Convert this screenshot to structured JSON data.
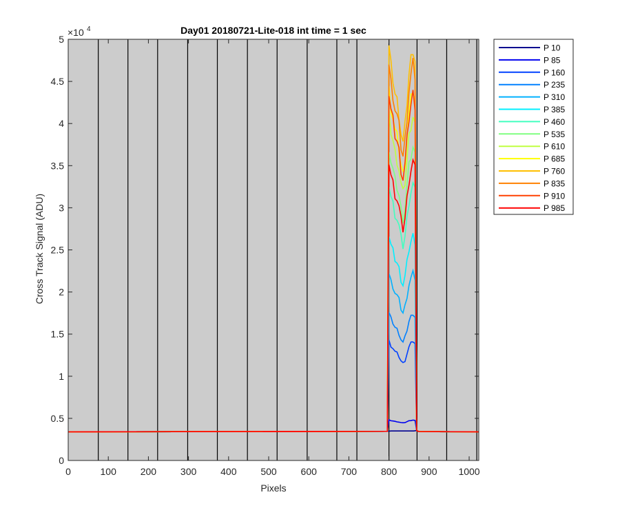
{
  "chart_data": {
    "type": "line",
    "title": "Day01 20180721-Lite-018 int time = 1 sec",
    "xlabel": "Pixels",
    "ylabel": "Cross Track Signal (ADU)",
    "xlim": [
      0,
      1024
    ],
    "ylim": [
      0,
      50000
    ],
    "x_ticks": [
      0,
      100,
      200,
      300,
      400,
      500,
      600,
      700,
      800,
      900,
      1000
    ],
    "x_tick_labels": [
      "0",
      "100",
      "200",
      "300",
      "400",
      "500",
      "600",
      "700",
      "800",
      "900",
      "1000"
    ],
    "y_ticks": [
      0,
      5000,
      10000,
      15000,
      20000,
      25000,
      30000,
      35000,
      40000,
      45000,
      50000
    ],
    "y_tick_labels": [
      "0",
      "0.5",
      "1",
      "1.5",
      "2",
      "2.5",
      "3",
      "3.5",
      "4",
      "4.5",
      "5"
    ],
    "y_exponent_label": "×10",
    "y_exponent_power": "4",
    "background_color": "#cccccc",
    "vertical_lines_x": [
      75,
      149,
      223,
      298,
      372,
      447,
      521,
      596,
      670,
      720,
      800,
      870,
      944,
      1019
    ],
    "baseline": 3400,
    "plateau_x": [
      800,
      805,
      810,
      815,
      820,
      825,
      830,
      835,
      840,
      845,
      850,
      855,
      860,
      865
    ],
    "profile_shape": [
      1.0,
      0.95,
      0.92,
      0.88,
      0.86,
      0.83,
      0.78,
      0.75,
      0.79,
      0.86,
      0.93,
      0.97,
      1.0,
      0.97
    ],
    "legend_position": "outside-right",
    "series": [
      {
        "name": "P 10",
        "color": "#00008f",
        "peak": 3500
      },
      {
        "name": "P 85",
        "color": "#0000ef",
        "peak": 4800
      },
      {
        "name": "P 160",
        "color": "#0040ff",
        "peak": 14200
      },
      {
        "name": "P 235",
        "color": "#0080ff",
        "peak": 17500
      },
      {
        "name": "P 310",
        "color": "#00b0ff",
        "peak": 22200
      },
      {
        "name": "P 385",
        "color": "#00efff",
        "peak": 26700
      },
      {
        "name": "P 460",
        "color": "#40ffbf",
        "peak": 32800
      },
      {
        "name": "P 535",
        "color": "#7fff80",
        "peak": 37200
      },
      {
        "name": "P 610",
        "color": "#bfff40",
        "peak": 41000
      },
      {
        "name": "P 685",
        "color": "#ffff00",
        "peak": 44000
      },
      {
        "name": "P 760",
        "color": "#ffbf00",
        "peak": 49000
      },
      {
        "name": "P 835",
        "color": "#ff8000",
        "peak": 47000
      },
      {
        "name": "P 910",
        "color": "#ff4000",
        "peak": 43500
      },
      {
        "name": "P 985",
        "color": "#ff0000",
        "peak": 35500
      }
    ]
  }
}
